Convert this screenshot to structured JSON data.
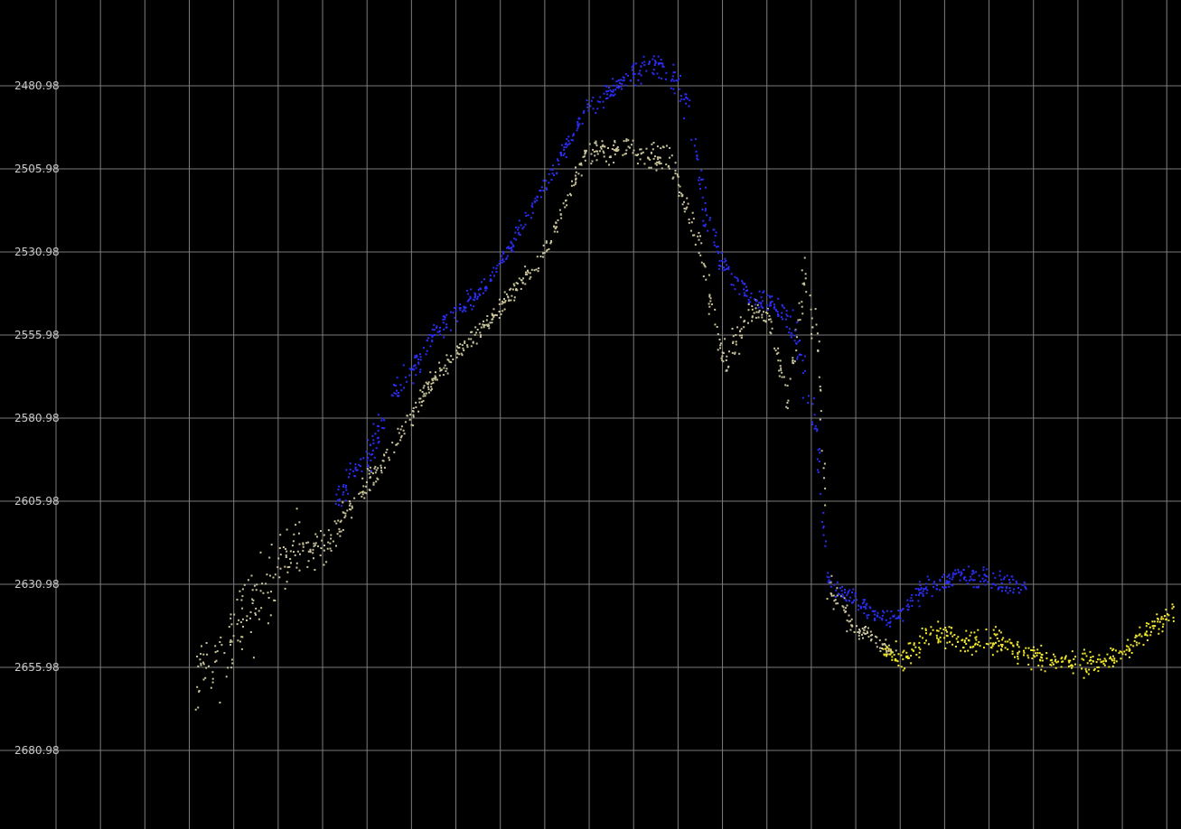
{
  "chart_data": {
    "type": "scatter",
    "title": "",
    "xlabel": "",
    "ylabel": "",
    "y_inverted": true,
    "grid": true,
    "ylim": [
      2460,
      2696
    ],
    "y_ticks": [
      {
        "value": 2480.98,
        "label": "2480.98"
      },
      {
        "value": 2505.98,
        "label": "2505.98"
      },
      {
        "value": 2530.98,
        "label": "2530.98"
      },
      {
        "value": 2555.98,
        "label": "2555.98"
      },
      {
        "value": 2580.98,
        "label": "2580.98"
      },
      {
        "value": 2605.98,
        "label": "2605.98"
      },
      {
        "value": 2630.98,
        "label": "2630.98"
      },
      {
        "value": 2655.98,
        "label": "2655.98"
      },
      {
        "value": 2680.98,
        "label": "2680.98"
      }
    ],
    "x_gridline_count": 27,
    "colors": {
      "background": "#000000",
      "grid": "#7d7d7d",
      "tick_label": "#c8c8c8",
      "series_blue": "#2a2df2",
      "series_beige": "#c9c39a",
      "series_yellow": "#f0e62b"
    },
    "series": [
      {
        "key": "beige",
        "color": "#c9c39a",
        "profile": [
          {
            "x": 215,
            "y": 2659,
            "spread": 15
          },
          {
            "x": 240,
            "y": 2655,
            "spread": 17
          },
          {
            "x": 270,
            "y": 2640,
            "spread": 18
          },
          {
            "x": 300,
            "y": 2630,
            "spread": 18
          },
          {
            "x": 330,
            "y": 2620,
            "spread": 15
          },
          {
            "x": 360,
            "y": 2622,
            "spread": 12
          },
          {
            "x": 380,
            "y": 2610,
            "spread": 6
          },
          {
            "x": 420,
            "y": 2595,
            "spread": 5
          },
          {
            "x": 480,
            "y": 2568,
            "spread": 4
          },
          {
            "x": 540,
            "y": 2552,
            "spread": 4
          },
          {
            "x": 600,
            "y": 2532,
            "spread": 4
          },
          {
            "x": 650,
            "y": 2500,
            "spread": 5
          },
          {
            "x": 700,
            "y": 2500,
            "spread": 7
          },
          {
            "x": 740,
            "y": 2503,
            "spread": 8
          },
          {
            "x": 770,
            "y": 2525,
            "spread": 7
          },
          {
            "x": 800,
            "y": 2565,
            "spread": 9
          },
          {
            "x": 830,
            "y": 2548,
            "spread": 6
          },
          {
            "x": 850,
            "y": 2550,
            "spread": 5
          },
          {
            "x": 870,
            "y": 2575,
            "spread": 6
          },
          {
            "x": 890,
            "y": 2540,
            "spread": 12
          },
          {
            "x": 905,
            "y": 2560,
            "spread": 12
          },
          {
            "x": 915,
            "y": 2630,
            "spread": 8
          },
          {
            "x": 940,
            "y": 2643,
            "spread": 4
          },
          {
            "x": 970,
            "y": 2648,
            "spread": 4
          },
          {
            "x": 990,
            "y": 2652,
            "spread": 4
          }
        ]
      },
      {
        "key": "blue",
        "color": "#2a2df2",
        "profile": [
          {
            "x": 370,
            "y": 2605,
            "spread": 5
          },
          {
            "x": 410,
            "y": 2590,
            "spread": 8
          },
          {
            "x": 440,
            "y": 2572,
            "spread": 8
          },
          {
            "x": 480,
            "y": 2556,
            "spread": 5
          },
          {
            "x": 540,
            "y": 2540,
            "spread": 4
          },
          {
            "x": 600,
            "y": 2512,
            "spread": 4
          },
          {
            "x": 650,
            "y": 2487,
            "spread": 4
          },
          {
            "x": 700,
            "y": 2477,
            "spread": 5
          },
          {
            "x": 730,
            "y": 2474,
            "spread": 6
          },
          {
            "x": 760,
            "y": 2485,
            "spread": 8
          },
          {
            "x": 780,
            "y": 2520,
            "spread": 10
          },
          {
            "x": 800,
            "y": 2535,
            "spread": 6
          },
          {
            "x": 830,
            "y": 2545,
            "spread": 4
          },
          {
            "x": 860,
            "y": 2547,
            "spread": 5
          },
          {
            "x": 880,
            "y": 2555,
            "spread": 10
          },
          {
            "x": 905,
            "y": 2590,
            "spread": 10
          },
          {
            "x": 915,
            "y": 2630,
            "spread": 4
          },
          {
            "x": 950,
            "y": 2637,
            "spread": 4
          },
          {
            "x": 990,
            "y": 2642,
            "spread": 4
          },
          {
            "x": 1020,
            "y": 2632,
            "spread": 5
          },
          {
            "x": 1060,
            "y": 2628,
            "spread": 5
          },
          {
            "x": 1100,
            "y": 2630,
            "spread": 5
          },
          {
            "x": 1135,
            "y": 2632,
            "spread": 4
          }
        ]
      },
      {
        "key": "yellow",
        "color": "#f0e62b",
        "profile": [
          {
            "x": 975,
            "y": 2651,
            "spread": 5
          },
          {
            "x": 1000,
            "y": 2653,
            "spread": 6
          },
          {
            "x": 1030,
            "y": 2645,
            "spread": 5
          },
          {
            "x": 1060,
            "y": 2648,
            "spread": 6
          },
          {
            "x": 1100,
            "y": 2648,
            "spread": 6
          },
          {
            "x": 1140,
            "y": 2652,
            "spread": 6
          },
          {
            "x": 1180,
            "y": 2655,
            "spread": 6
          },
          {
            "x": 1220,
            "y": 2654,
            "spread": 5
          },
          {
            "x": 1260,
            "y": 2648,
            "spread": 5
          },
          {
            "x": 1300,
            "y": 2638,
            "spread": 5
          }
        ]
      }
    ]
  }
}
